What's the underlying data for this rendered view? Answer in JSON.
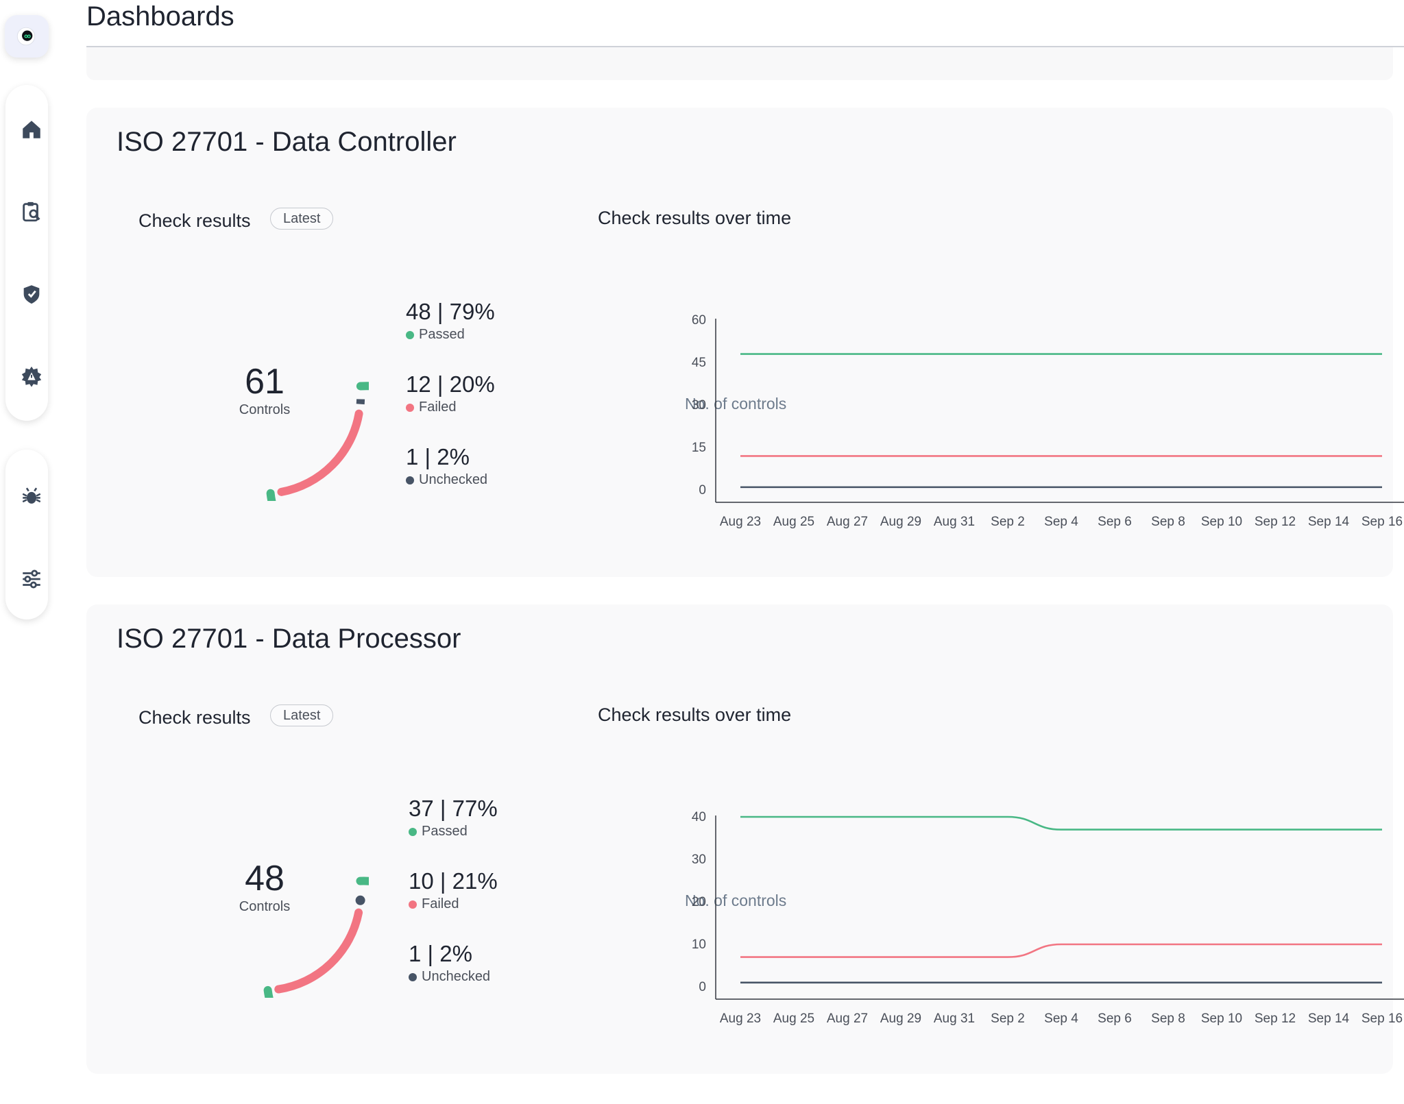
{
  "page": {
    "title": "Dashboards"
  },
  "sidebar": {
    "icons": [
      "logo-icon",
      "home-icon",
      "clipboard-search-icon",
      "shield-check-icon",
      "gear-alert-icon",
      "bug-icon",
      "sliders-icon"
    ]
  },
  "colors": {
    "passed": "#49b885",
    "failed": "#f27582",
    "unchecked": "#475466"
  },
  "cards": [
    {
      "title": "ISO 27701 - Data Controller",
      "check_results_label": "Check results",
      "badge": "Latest",
      "total": "61",
      "total_caption": "Controls",
      "stats": [
        {
          "value": "48 | 79%",
          "label": "Passed"
        },
        {
          "value": "12 | 20%",
          "label": "Failed"
        },
        {
          "value": "1 | 2%",
          "label": "Unchecked"
        }
      ],
      "chart_title": "Check results over time"
    },
    {
      "title": "ISO 27701 - Data Processor",
      "check_results_label": "Check results",
      "badge": "Latest",
      "total": "48",
      "total_caption": "Controls",
      "stats": [
        {
          "value": "37 | 77%",
          "label": "Passed"
        },
        {
          "value": "10 | 21%",
          "label": "Failed"
        },
        {
          "value": "1 | 2%",
          "label": "Unchecked"
        }
      ],
      "chart_title": "Check results over time"
    }
  ],
  "chart_data": [
    {
      "type": "line",
      "title": "Check results over time",
      "ylabel": "No. of controls",
      "xlabel": "",
      "ylim": [
        0,
        60
      ],
      "yticks": [
        0,
        15,
        30,
        45,
        60
      ],
      "x": [
        "Aug 23",
        "Aug 25",
        "Aug 27",
        "Aug 29",
        "Aug 31",
        "Sep 2",
        "Sep 4",
        "Sep 6",
        "Sep 8",
        "Sep 10",
        "Sep 12",
        "Sep 14",
        "Sep 16"
      ],
      "series": [
        {
          "status": "passed",
          "values": [
            48,
            48,
            48,
            48,
            48,
            48,
            48,
            48,
            48,
            48,
            48,
            48,
            48
          ]
        },
        {
          "status": "failed",
          "values": [
            12,
            12,
            12,
            12,
            12,
            12,
            12,
            12,
            12,
            12,
            12,
            12,
            12
          ]
        },
        {
          "status": "unchecked",
          "values": [
            1,
            1,
            1,
            1,
            1,
            1,
            1,
            1,
            1,
            1,
            1,
            1,
            1
          ]
        }
      ],
      "grid": false,
      "legend": "none"
    },
    {
      "type": "line",
      "title": "Check results over time",
      "ylabel": "No. of controls",
      "xlabel": "",
      "ylim": [
        0,
        40
      ],
      "yticks": [
        0,
        10,
        20,
        30,
        40
      ],
      "x": [
        "Aug 23",
        "Aug 25",
        "Aug 27",
        "Aug 29",
        "Aug 31",
        "Sep 2",
        "Sep 4",
        "Sep 6",
        "Sep 8",
        "Sep 10",
        "Sep 12",
        "Sep 14",
        "Sep 16"
      ],
      "series": [
        {
          "status": "passed",
          "values": [
            40,
            40,
            40,
            40,
            40,
            40,
            37,
            37,
            37,
            37,
            37,
            37,
            37
          ]
        },
        {
          "status": "failed",
          "values": [
            7,
            7,
            7,
            7,
            7,
            7,
            10,
            10,
            10,
            10,
            10,
            10,
            10
          ]
        },
        {
          "status": "unchecked",
          "values": [
            1,
            1,
            1,
            1,
            1,
            1,
            1,
            1,
            1,
            1,
            1,
            1,
            1
          ]
        }
      ],
      "grid": false,
      "legend": "none"
    }
  ]
}
